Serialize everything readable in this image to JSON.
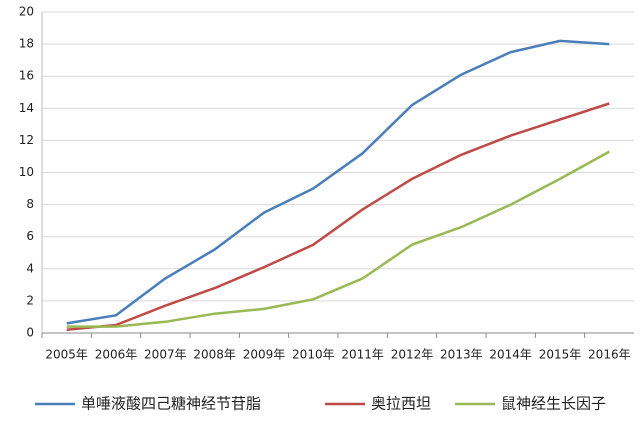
{
  "chart_data": {
    "type": "line",
    "categories": [
      "2005年",
      "2006年",
      "2007年",
      "2008年",
      "2009年",
      "2010年",
      "2011年",
      "2012年",
      "2013年",
      "2014年",
      "2015年",
      "2016年"
    ],
    "series": [
      {
        "name": "单唾液酸四己糖神经节苷脂",
        "color": "#4a7ebb",
        "values": [
          0.6,
          1.1,
          3.4,
          5.2,
          7.5,
          9.0,
          11.2,
          14.2,
          16.1,
          17.5,
          18.2,
          18.0
        ]
      },
      {
        "name": "奥拉西坦",
        "color": "#be4b48",
        "values": [
          0.2,
          0.5,
          1.7,
          2.8,
          4.1,
          5.5,
          7.7,
          9.6,
          11.1,
          12.3,
          13.3,
          14.3
        ]
      },
      {
        "name": "鼠神经生长因子",
        "color": "#98b954",
        "values": [
          0.4,
          0.4,
          0.7,
          1.2,
          1.5,
          2.1,
          3.4,
          5.5,
          6.6,
          8.0,
          9.6,
          11.3
        ]
      }
    ],
    "ylim": [
      0,
      20
    ],
    "yticks": [
      0,
      2,
      4,
      6,
      8,
      10,
      12,
      14,
      16,
      18,
      20
    ],
    "grid": true,
    "legend": "bottom"
  }
}
